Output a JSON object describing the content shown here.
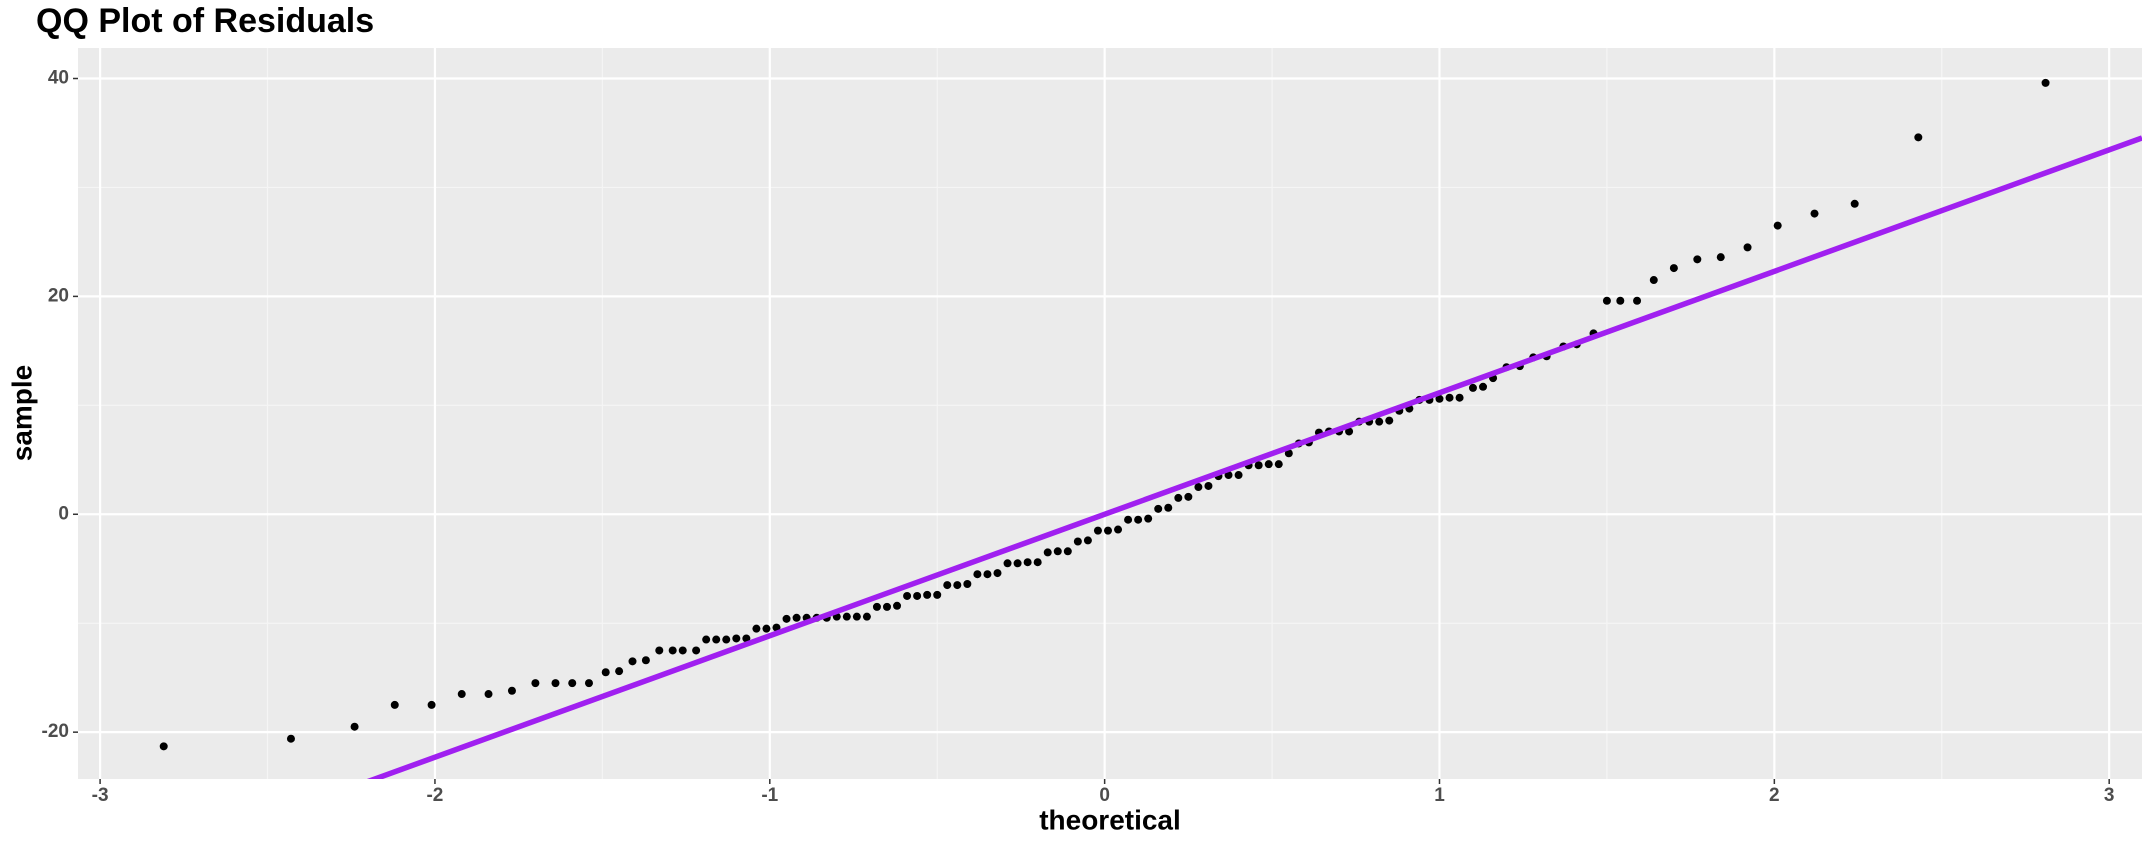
{
  "chart_data": {
    "type": "scatter",
    "title": "QQ Plot of Residuals",
    "x_label": "theoretical",
    "y_label": "sample",
    "xlim": [
      -3.066,
      3.098
    ],
    "ylim": [
      -24.3,
      42.8
    ],
    "xticks": [
      -3,
      -2,
      -1,
      0,
      1,
      2,
      3
    ],
    "yticks": [
      -20,
      0,
      20,
      40
    ],
    "grid": true,
    "point_color": "#000000",
    "reference_line": {
      "slope": 11.15,
      "intercept": 0,
      "color": "#a020f0"
    },
    "x": [
      -2.81,
      -2.43,
      -2.24,
      -2.12,
      -2.01,
      -1.92,
      -1.84,
      -1.77,
      -1.7,
      -1.64,
      -1.59,
      -1.54,
      -1.49,
      -1.45,
      -1.41,
      -1.37,
      -1.33,
      -1.29,
      -1.26,
      -1.22,
      -1.19,
      -1.16,
      -1.13,
      -1.1,
      -1.07,
      -1.04,
      -1.01,
      -0.98,
      -0.95,
      -0.92,
      -0.89,
      -0.86,
      -0.83,
      -0.8,
      -0.77,
      -0.74,
      -0.71,
      -0.68,
      -0.65,
      -0.62,
      -0.59,
      -0.56,
      -0.53,
      -0.5,
      -0.47,
      -0.44,
      -0.41,
      -0.38,
      -0.35,
      -0.32,
      -0.29,
      -0.26,
      -0.23,
      -0.2,
      -0.17,
      -0.14,
      -0.11,
      -0.08,
      -0.05,
      -0.02,
      0.01,
      0.04,
      0.07,
      0.1,
      0.13,
      0.16,
      0.19,
      0.22,
      0.25,
      0.28,
      0.31,
      0.34,
      0.37,
      0.4,
      0.43,
      0.46,
      0.49,
      0.52,
      0.55,
      0.58,
      0.61,
      0.64,
      0.67,
      0.7,
      0.73,
      0.76,
      0.79,
      0.82,
      0.85,
      0.88,
      0.91,
      0.94,
      0.97,
      1.0,
      1.03,
      1.06,
      1.1,
      1.13,
      1.16,
      1.2,
      1.24,
      1.28,
      1.32,
      1.37,
      1.41,
      1.46,
      1.5,
      1.54,
      1.59,
      1.64,
      1.7,
      1.77,
      1.84,
      1.92,
      2.01,
      2.12,
      2.24,
      2.43,
      2.81
    ],
    "values": [
      -21.3,
      -20.6,
      -19.5,
      -17.5,
      -17.5,
      -16.5,
      -16.5,
      -16.2,
      -15.5,
      -15.5,
      -15.5,
      -15.5,
      -14.5,
      -14.4,
      -13.5,
      -13.4,
      -12.5,
      -12.5,
      -12.5,
      -12.5,
      -11.5,
      -11.5,
      -11.5,
      -11.4,
      -11.4,
      -10.5,
      -10.5,
      -10.4,
      -9.6,
      -9.5,
      -9.5,
      -9.5,
      -9.5,
      -9.4,
      -9.4,
      -9.4,
      -9.4,
      -8.5,
      -8.5,
      -8.4,
      -7.5,
      -7.5,
      -7.4,
      -7.4,
      -6.5,
      -6.5,
      -6.4,
      -5.5,
      -5.5,
      -5.4,
      -4.5,
      -4.5,
      -4.4,
      -4.4,
      -3.5,
      -3.4,
      -3.4,
      -2.5,
      -2.4,
      -1.5,
      -1.5,
      -1.4,
      -0.5,
      -0.5,
      -0.4,
      0.5,
      0.6,
      1.5,
      1.6,
      2.5,
      2.6,
      3.5,
      3.6,
      3.6,
      4.5,
      4.5,
      4.6,
      4.6,
      5.6,
      6.5,
      6.6,
      7.5,
      7.6,
      7.6,
      7.6,
      8.5,
      8.5,
      8.5,
      8.6,
      9.5,
      9.7,
      10.5,
      10.5,
      10.6,
      10.7,
      10.7,
      11.6,
      11.7,
      12.5,
      13.5,
      13.6,
      14.4,
      14.5,
      15.4,
      15.6,
      16.6,
      19.6,
      19.6,
      19.6,
      21.5,
      22.6,
      23.4,
      23.6,
      24.5,
      26.5,
      27.6,
      28.5,
      34.6,
      39.6
    ]
  }
}
